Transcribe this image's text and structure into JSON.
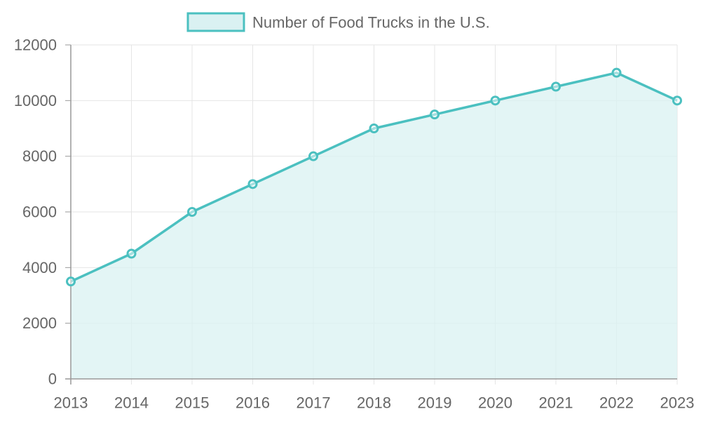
{
  "chart_data": {
    "type": "area",
    "title": "",
    "xlabel": "",
    "ylabel": "",
    "categories": [
      "2013",
      "2014",
      "2015",
      "2016",
      "2017",
      "2018",
      "2019",
      "2020",
      "2021",
      "2022",
      "2023"
    ],
    "series": [
      {
        "name": "Number of Food Trucks in the U.S.",
        "values": [
          3500,
          4500,
          6000,
          7000,
          8000,
          9000,
          9500,
          10000,
          10500,
          11000,
          10000
        ]
      }
    ],
    "ylim": [
      0,
      12000
    ],
    "y_ticks": [
      "0",
      "2000",
      "4000",
      "6000",
      "8000",
      "10000",
      "12000"
    ],
    "grid": true,
    "legend_position": "top",
    "colors": {
      "line": "#4bc0c0",
      "fill": "#daf1f2",
      "grid": "#e5e5e5",
      "axis": "#999999",
      "text": "#666666"
    }
  }
}
